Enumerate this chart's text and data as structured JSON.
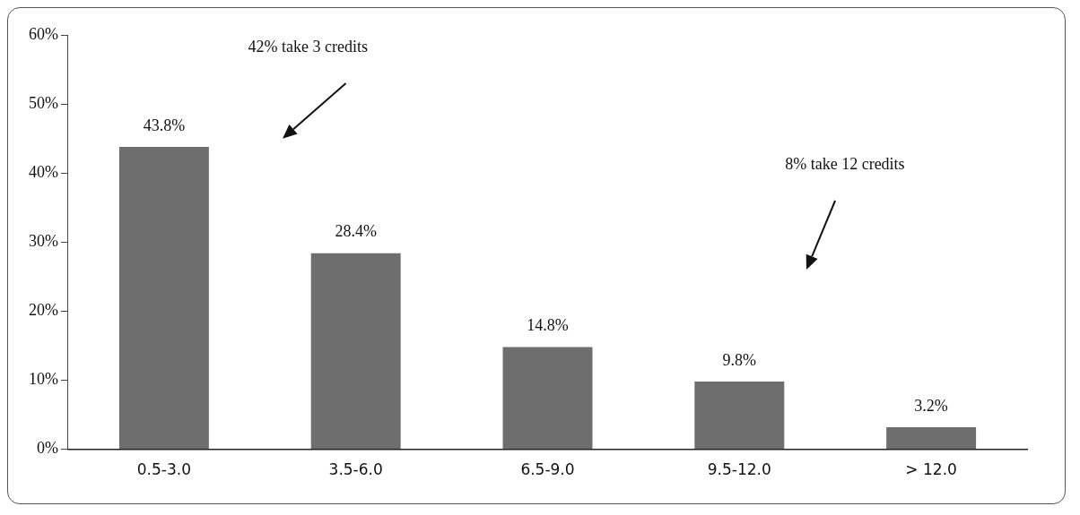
{
  "chart_data": {
    "type": "bar",
    "categories": [
      "0.5-3.0",
      "3.5-6.0",
      "6.5-9.0",
      "9.5-12.0",
      "> 12.0"
    ],
    "values": [
      43.8,
      28.4,
      14.8,
      9.8,
      3.2
    ],
    "value_labels": [
      "43.8%",
      "28.4%",
      "14.8%",
      "9.8%",
      "3.2%"
    ],
    "color": "#6e6e6e",
    "ylim": [
      0,
      60
    ],
    "yticks": [
      {
        "value": 0,
        "label": "0%"
      },
      {
        "value": 10,
        "label": "10%"
      },
      {
        "value": 20,
        "label": "20%"
      },
      {
        "value": 30,
        "label": "30%"
      },
      {
        "value": 40,
        "label": "40%"
      },
      {
        "value": 50,
        "label": "50%"
      },
      {
        "value": 60,
        "label": "60%"
      }
    ],
    "grid": false,
    "annotations": [
      "42% take 3 credits",
      "8% take 12 credits"
    ]
  }
}
